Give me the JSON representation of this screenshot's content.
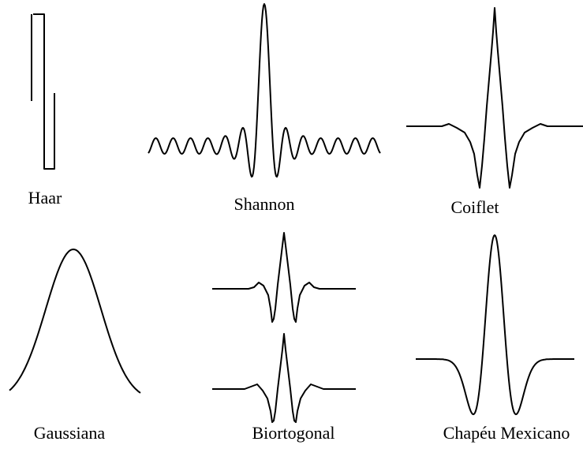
{
  "labels": [
    "Haar",
    "Shannon",
    "Coiflet",
    "Gaussiana",
    "Biortogonal",
    "Chapéu Mexicano"
  ]
}
